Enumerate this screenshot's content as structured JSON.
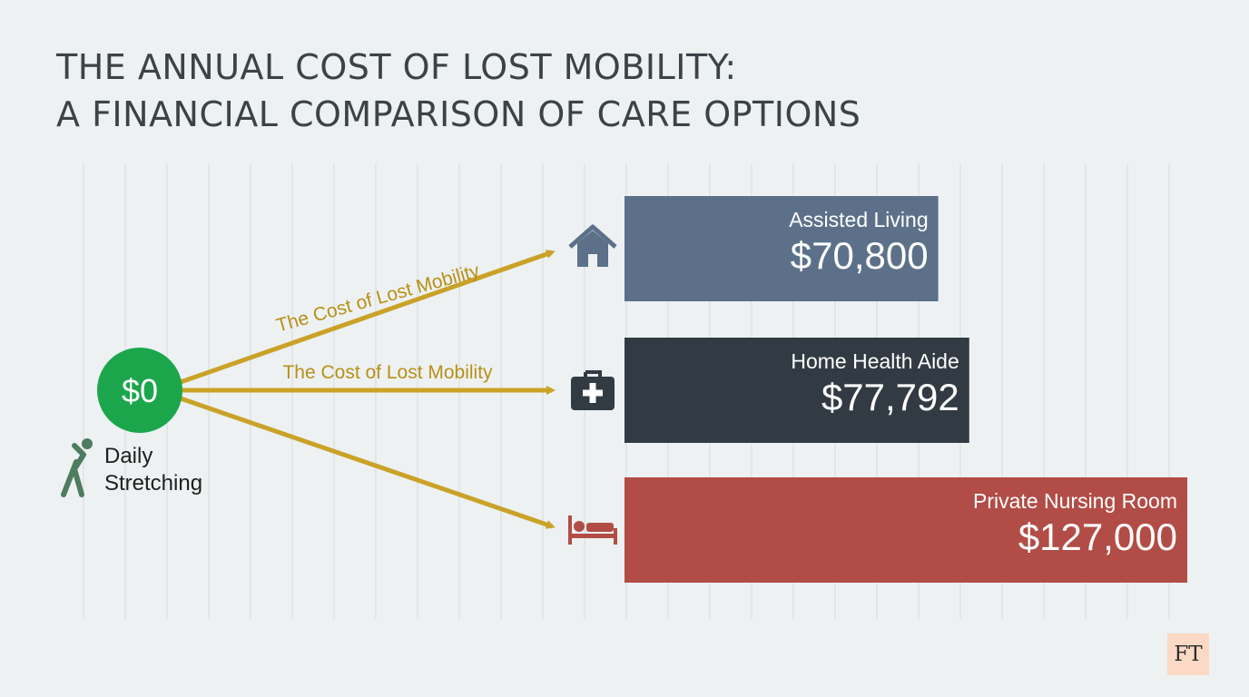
{
  "title": {
    "line1": "THE ANNUAL COST OF LOST MOBILITY:",
    "line2": "A FINANCIAL COMPARISON OF CARE OPTIONS"
  },
  "colors": {
    "background": "#edf1f2",
    "grid": "#d7dcdf",
    "arrow": "#c9a227",
    "arrow_label": "#b89016",
    "start_circle": "#1ba64c",
    "stretch_icon": "#4e7c5f"
  },
  "chart_data": {
    "type": "bar",
    "orientation": "horizontal",
    "title": "THE ANNUAL COST OF LOST MOBILITY: A FINANCIAL COMPARISON OF CARE OPTIONS",
    "grid": true,
    "start": {
      "label": "Daily Stretching",
      "value": 0,
      "value_label": "$0",
      "icon": "stretching-person-icon"
    },
    "arrow_labels": [
      "The Cost of Lost Mobility",
      "The Cost of Lost Mobility"
    ],
    "categories": [
      "Assisted Living",
      "Home Health Aide",
      "Private Nursing Room"
    ],
    "values": [
      70800,
      77792,
      127000
    ],
    "value_labels": [
      "$70,800",
      "$77,792",
      "$127,000"
    ],
    "bar_colors": [
      "#5c7189",
      "#323b44",
      "#b24c46"
    ],
    "icons": [
      "house-icon",
      "medical-kit-icon",
      "bed-icon"
    ],
    "xlim": [
      0,
      127000
    ]
  },
  "logo": {
    "text": "FT"
  }
}
